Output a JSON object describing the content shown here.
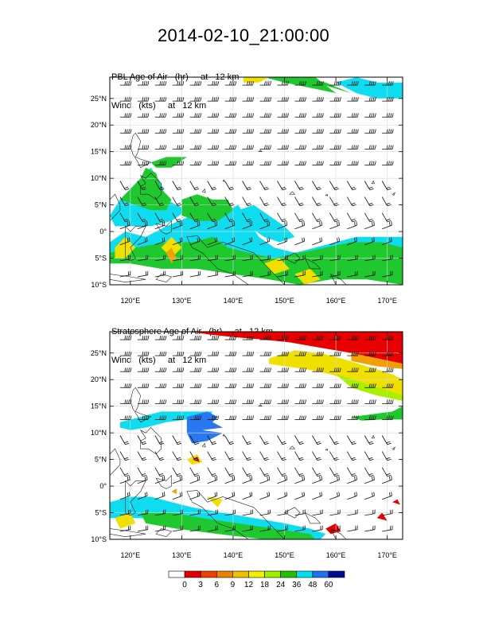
{
  "title": "2014-02-10_21:00:00",
  "panels": [
    {
      "id": "pbl",
      "field_label": "PBL Age of Air   (hr)     at   12 km",
      "wind_label": "Wind   (kts)     at   12 km"
    },
    {
      "id": "strat",
      "field_label": "Stratosphere Age of Air   (hr)     at   12 km",
      "wind_label": "Wind   (kts)     at   12 km"
    }
  ],
  "axes": {
    "lon_range": [
      116,
      173
    ],
    "lat_range": [
      -10,
      29
    ],
    "lon_ticks": [
      120,
      130,
      140,
      150,
      160,
      170
    ],
    "lon_labels": [
      "120°E",
      "130°E",
      "140°E",
      "150°E",
      "160°E",
      "170°E"
    ],
    "lat_ticks": [
      25,
      20,
      15,
      10,
      5,
      0,
      -5,
      -10
    ],
    "lat_labels": [
      "25°N",
      "20°N",
      "15°N",
      "10°N",
      "5°N",
      "0°",
      "5°S",
      "10°S"
    ]
  },
  "colorbar": {
    "labels": [
      "0",
      "3",
      "6",
      "9",
      "12",
      "18",
      "24",
      "36",
      "48",
      "60"
    ],
    "colors": [
      "#ffffff",
      "#e00000",
      "#f04000",
      "#f08000",
      "#f0c000",
      "#f0f000",
      "#a0f000",
      "#20c000",
      "#00e0f0",
      "#2070f0",
      "#001090"
    ]
  },
  "chart_data": {
    "type": "map",
    "units": "hr",
    "levels": [
      0,
      3,
      6,
      9,
      12,
      18,
      24,
      36,
      48,
      60
    ],
    "pbl_regions": [
      {
        "category": "cyan",
        "lonlat": [
          [
            116,
            -2
          ],
          [
            119,
            0
          ],
          [
            123,
            -1
          ],
          [
            127,
            1
          ],
          [
            132,
            3
          ],
          [
            137,
            3
          ],
          [
            141,
            5
          ],
          [
            143,
            2
          ],
          [
            145,
            -1
          ],
          [
            148,
            -3
          ],
          [
            152,
            -4
          ],
          [
            156,
            -3
          ],
          [
            160,
            -2
          ],
          [
            164,
            -1
          ],
          [
            168,
            -1
          ],
          [
            173,
            -1
          ],
          [
            173,
            -4
          ],
          [
            168,
            -5
          ],
          [
            162,
            -6
          ],
          [
            157,
            -7
          ],
          [
            152,
            -7
          ],
          [
            147,
            -5
          ],
          [
            142,
            -4
          ],
          [
            138,
            -3
          ],
          [
            133,
            -3
          ],
          [
            128,
            -2
          ],
          [
            122,
            -3
          ],
          [
            116,
            -5
          ]
        ]
      },
      {
        "category": "green",
        "lonlat": [
          [
            116,
            -4
          ],
          [
            121,
            -3
          ],
          [
            127,
            -2
          ],
          [
            132,
            -2
          ],
          [
            136,
            -1
          ],
          [
            139,
            -3
          ],
          [
            143,
            -4
          ],
          [
            148,
            -5
          ],
          [
            153,
            -4
          ],
          [
            158,
            -3
          ],
          [
            163,
            -2
          ],
          [
            169,
            -2
          ],
          [
            173,
            -3
          ],
          [
            173,
            -10
          ],
          [
            166,
            -9
          ],
          [
            159,
            -9
          ],
          [
            153,
            -10
          ],
          [
            147,
            -9
          ],
          [
            140,
            -8
          ],
          [
            133,
            -7
          ],
          [
            126,
            -7
          ],
          [
            120,
            -6
          ],
          [
            116,
            -6
          ]
        ]
      },
      {
        "category": "cyan",
        "lonlat": [
          [
            116,
            3
          ],
          [
            118,
            6
          ],
          [
            121,
            9
          ],
          [
            123,
            11
          ],
          [
            124,
            12
          ],
          [
            126,
            9
          ],
          [
            127,
            6
          ],
          [
            129,
            5
          ],
          [
            131,
            4
          ],
          [
            128,
            2
          ],
          [
            124,
            1
          ],
          [
            120,
            1
          ],
          [
            117,
            1
          ]
        ]
      },
      {
        "category": "green",
        "lonlat": [
          [
            118,
            6
          ],
          [
            120,
            8
          ],
          [
            122,
            10
          ],
          [
            123,
            12
          ],
          [
            125,
            11
          ],
          [
            126,
            8
          ],
          [
            128,
            6
          ],
          [
            127,
            4
          ],
          [
            124,
            4
          ],
          [
            121,
            5
          ]
        ]
      },
      {
        "category": "green",
        "lonlat": [
          [
            130,
            6
          ],
          [
            133,
            7
          ],
          [
            136,
            6
          ],
          [
            139,
            6
          ],
          [
            140,
            4
          ],
          [
            137,
            2
          ],
          [
            133,
            2
          ],
          [
            130,
            3
          ]
        ]
      },
      {
        "category": "cyan",
        "lonlat": [
          [
            141,
            4
          ],
          [
            144,
            5
          ],
          [
            147,
            3
          ],
          [
            150,
            1
          ],
          [
            152,
            -1
          ],
          [
            149,
            -2
          ],
          [
            146,
            -1
          ],
          [
            143,
            1
          ]
        ]
      },
      {
        "category": "green",
        "lonlat": [
          [
            124,
            13
          ],
          [
            127,
            14
          ],
          [
            131,
            14
          ],
          [
            128,
            12
          ],
          [
            125,
            12
          ]
        ]
      },
      {
        "category": "yellow",
        "lonlat": [
          [
            117,
            -3
          ],
          [
            119,
            -1
          ],
          [
            121,
            -3
          ],
          [
            119,
            -5
          ],
          [
            117,
            -5
          ]
        ]
      },
      {
        "category": "yellow",
        "lonlat": [
          [
            126,
            -3
          ],
          [
            128,
            -1
          ],
          [
            130,
            -3
          ],
          [
            128,
            -5
          ]
        ]
      },
      {
        "category": "yellow",
        "lonlat": [
          [
            146,
            -6
          ],
          [
            149,
            -5
          ],
          [
            151,
            -7
          ],
          [
            148,
            -8
          ]
        ]
      },
      {
        "category": "orange",
        "lonlat": [
          [
            127,
            -4
          ],
          [
            128,
            -3
          ],
          [
            129,
            -5
          ],
          [
            128,
            -6
          ]
        ]
      },
      {
        "category": "yellow",
        "lonlat": [
          [
            152,
            -8
          ],
          [
            155,
            -7
          ],
          [
            157,
            -9
          ],
          [
            154,
            -10
          ]
        ]
      },
      {
        "category": "green",
        "lonlat": [
          [
            146,
            29
          ],
          [
            150,
            28
          ],
          [
            155,
            27
          ],
          [
            160,
            26
          ],
          [
            156,
            29
          ]
        ]
      },
      {
        "category": "cyan",
        "lonlat": [
          [
            160,
            28
          ],
          [
            164,
            26
          ],
          [
            168,
            25
          ],
          [
            173,
            25
          ],
          [
            173,
            28
          ],
          [
            168,
            28
          ],
          [
            164,
            29
          ]
        ]
      },
      {
        "category": "yellow",
        "lonlat": [
          [
            142,
            29
          ],
          [
            147,
            29
          ],
          [
            145,
            28
          ],
          [
            142,
            28
          ]
        ]
      },
      {
        "category": "green",
        "lonlat": [
          [
            150,
            29
          ],
          [
            156,
            28
          ],
          [
            163,
            26
          ],
          [
            158,
            28
          ],
          [
            153,
            29
          ]
        ]
      }
    ],
    "strat_regions": [
      {
        "category": "red",
        "lonlat": [
          [
            132,
            29
          ],
          [
            145,
            29
          ],
          [
            160,
            29
          ],
          [
            173,
            29
          ],
          [
            173,
            23
          ],
          [
            168,
            24
          ],
          [
            163,
            25
          ],
          [
            157,
            26
          ],
          [
            151,
            27
          ],
          [
            146,
            27.5
          ],
          [
            140,
            28
          ],
          [
            135,
            28.5
          ]
        ]
      },
      {
        "category": "orange",
        "lonlat": [
          [
            163,
            25
          ],
          [
            168,
            24
          ],
          [
            173,
            23
          ],
          [
            173,
            22
          ],
          [
            168,
            22.5
          ],
          [
            163,
            23.5
          ]
        ]
      },
      {
        "category": "yellow",
        "lonlat": [
          [
            147,
            24
          ],
          [
            152,
            25.5
          ],
          [
            157,
            25
          ],
          [
            161,
            24
          ],
          [
            166,
            22.5
          ],
          [
            171,
            21
          ],
          [
            173,
            20
          ],
          [
            173,
            17
          ],
          [
            169,
            18
          ],
          [
            164,
            19.5
          ],
          [
            159,
            21
          ],
          [
            154,
            22
          ],
          [
            150,
            22.5
          ],
          [
            147,
            23
          ]
        ]
      },
      {
        "category": "lime",
        "lonlat": [
          [
            160,
            21
          ],
          [
            165,
            19.5
          ],
          [
            170,
            18
          ],
          [
            173,
            17
          ],
          [
            173,
            16
          ],
          [
            168,
            17
          ],
          [
            163,
            18.5
          ]
        ]
      },
      {
        "category": "green",
        "lonlat": [
          [
            163,
            13
          ],
          [
            167,
            13.5
          ],
          [
            171,
            14
          ],
          [
            173,
            15
          ],
          [
            173,
            12.5
          ],
          [
            169,
            12.5
          ],
          [
            165,
            12.3
          ]
        ]
      },
      {
        "category": "cyan",
        "lonlat": [
          [
            118,
            12
          ],
          [
            122,
            13
          ],
          [
            126,
            14
          ],
          [
            130,
            14
          ],
          [
            134,
            14
          ],
          [
            136,
            14
          ],
          [
            135,
            12.5
          ],
          [
            131,
            12.5
          ],
          [
            127,
            12
          ],
          [
            123,
            11
          ],
          [
            120,
            10.5
          ],
          [
            118,
            11
          ]
        ]
      },
      {
        "category": "blue",
        "lonlat": [
          [
            131,
            13
          ],
          [
            135,
            14
          ],
          [
            137,
            13
          ],
          [
            136,
            12
          ],
          [
            138,
            11
          ],
          [
            134,
            10.5
          ],
          [
            138,
            10
          ],
          [
            135,
            8.5
          ],
          [
            132,
            8
          ],
          [
            131,
            10
          ]
        ]
      },
      {
        "category": "yellow",
        "lonlat": [
          [
            131,
            5
          ],
          [
            133,
            6
          ],
          [
            134,
            4.5
          ],
          [
            132,
            4
          ]
        ]
      },
      {
        "category": "red",
        "lonlat": [
          [
            132,
            5
          ],
          [
            133,
            5.5
          ],
          [
            133.5,
            4.5
          ]
        ]
      },
      {
        "category": "cyan",
        "lonlat": [
          [
            116,
            -3
          ],
          [
            120,
            -2
          ],
          [
            124,
            -2
          ],
          [
            128,
            -3
          ],
          [
            132,
            -4
          ],
          [
            138,
            -5
          ],
          [
            144,
            -6
          ],
          [
            150,
            -7
          ],
          [
            155,
            -8
          ],
          [
            158,
            -9
          ],
          [
            157,
            -10
          ],
          [
            150,
            -10
          ],
          [
            143,
            -9
          ],
          [
            136,
            -8
          ],
          [
            129,
            -7
          ],
          [
            122,
            -6
          ],
          [
            116,
            -6
          ]
        ]
      },
      {
        "category": "green",
        "lonlat": [
          [
            122,
            -5
          ],
          [
            128,
            -5
          ],
          [
            134,
            -6
          ],
          [
            141,
            -7
          ],
          [
            148,
            -8
          ],
          [
            155,
            -9
          ],
          [
            156,
            -10
          ],
          [
            146,
            -10
          ],
          [
            137,
            -9
          ],
          [
            129,
            -8
          ],
          [
            123,
            -7
          ]
        ]
      },
      {
        "category": "yellow",
        "lonlat": [
          [
            117,
            -6
          ],
          [
            120,
            -5
          ],
          [
            121,
            -7
          ],
          [
            118,
            -8
          ]
        ]
      },
      {
        "category": "yellow",
        "lonlat": [
          [
            135,
            -2
          ],
          [
            138,
            -2.5
          ],
          [
            137,
            -4
          ]
        ]
      },
      {
        "category": "orange",
        "lonlat": [
          [
            128,
            -1
          ],
          [
            129,
            -0.5
          ],
          [
            129,
            -1.5
          ]
        ]
      },
      {
        "category": "red",
        "lonlat": [
          [
            158,
            -8
          ],
          [
            160,
            -7
          ],
          [
            161,
            -8.5
          ],
          [
            159,
            -9
          ]
        ]
      },
      {
        "category": "red",
        "lonlat": [
          [
            168,
            -6
          ],
          [
            169,
            -5
          ],
          [
            170,
            -6.5
          ]
        ]
      },
      {
        "category": "red",
        "lonlat": [
          [
            171,
            -3
          ],
          [
            172,
            -2.5
          ],
          [
            172.5,
            -3.5
          ]
        ]
      }
    ]
  }
}
